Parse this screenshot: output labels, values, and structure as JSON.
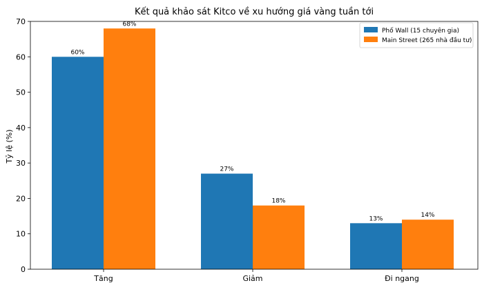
{
  "chart_data": {
    "type": "bar",
    "title": "Kết quả khảo sát Kitco về xu hướng giá vàng tuần tới",
    "xlabel": "",
    "ylabel": "Tỷ lệ (%)",
    "ylim": [
      0,
      70
    ],
    "yticks": [
      0,
      10,
      20,
      30,
      40,
      50,
      60,
      70
    ],
    "grid": false,
    "legend_position": "top-right",
    "categories": [
      "Tăng",
      "Giảm",
      "Đi ngang"
    ],
    "series": [
      {
        "name": "Phố Wall (15 chuyên gia)",
        "values": [
          60,
          27,
          13
        ],
        "labels": [
          "60%",
          "27%",
          "13%"
        ],
        "color": "#1f77b4"
      },
      {
        "name": "Main Street (265 nhà đầu tư)",
        "values": [
          68,
          18,
          14
        ],
        "labels": [
          "68%",
          "18%",
          "14%"
        ],
        "color": "#ff7f0e"
      }
    ]
  }
}
